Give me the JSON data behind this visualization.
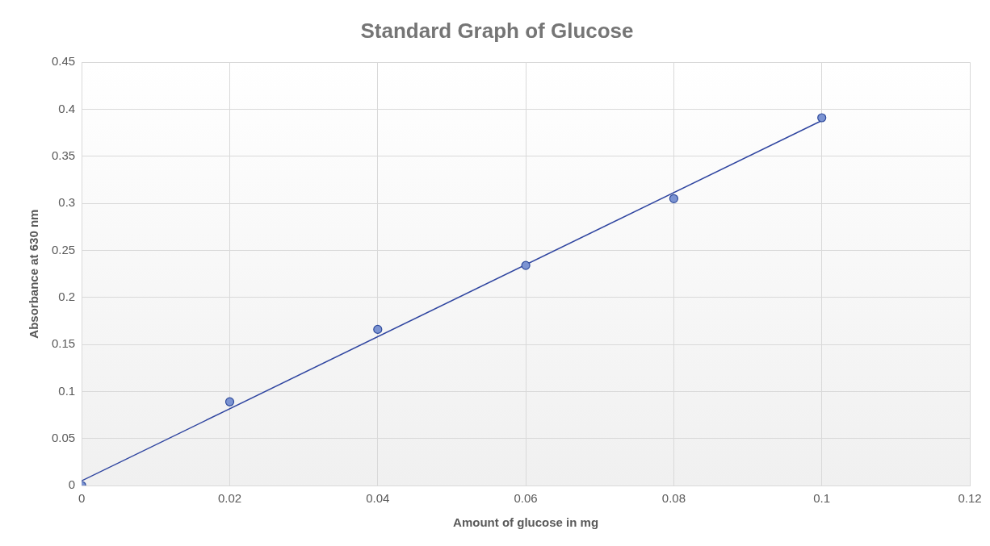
{
  "chart_data": {
    "type": "scatter",
    "title": "Standard Graph of Glucose",
    "xlabel": "Amount of glucose in mg",
    "ylabel": "Absorbance at 630 nm",
    "xlim": [
      0,
      0.12
    ],
    "xticks": [
      0,
      0.02,
      0.04,
      0.06,
      0.08,
      0.1,
      0.12
    ],
    "ylim": [
      0,
      0.45
    ],
    "yticks": [
      0,
      0.05,
      0.1,
      0.15,
      0.2,
      0.25,
      0.3,
      0.35,
      0.4,
      0.45
    ],
    "grid": true,
    "legend": false,
    "marker": "circle",
    "series": [
      {
        "color": "#7b93d2",
        "x": [
          0,
          0.02,
          0.04,
          0.06,
          0.08,
          0.1
        ],
        "values": [
          0,
          0.089,
          0.166,
          0.234,
          0.305,
          0.391
        ]
      },
      {
        "type": "line",
        "color": "#2f45a0",
        "line_style": "solid",
        "marker": "none",
        "x": [
          0,
          0.1
        ],
        "values": [
          0.005,
          0.388
        ]
      }
    ]
  }
}
